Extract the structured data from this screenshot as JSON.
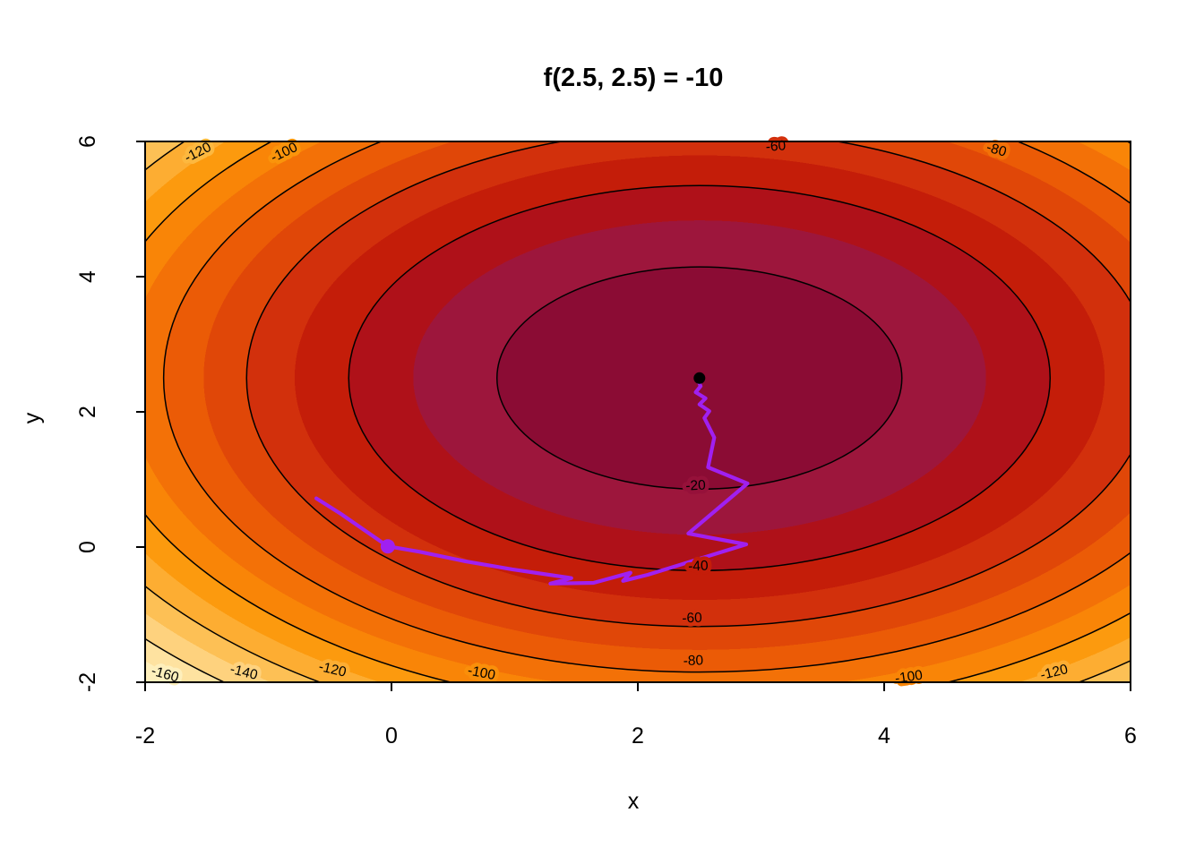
{
  "title": "f(2.5, 2.5) = -10",
  "background": "#FFFFFF",
  "chart_data": {
    "type": "filled-contour",
    "title": "f(2.5, 2.5) = -10",
    "xlabel": "x",
    "ylabel": "y",
    "xlim": [
      -2,
      6
    ],
    "ylim": [
      -2,
      6
    ],
    "grid": false,
    "x_ticks": [
      -2,
      0,
      2,
      4,
      6
    ],
    "y_ticks": [
      -2,
      0,
      2,
      4,
      6
    ],
    "x_tick_labels": [
      "-2",
      "0",
      "2",
      "4",
      "6"
    ],
    "y_tick_labels": [
      "-2",
      "0",
      "2",
      "4",
      "6"
    ],
    "optimum": {
      "x": 2.5,
      "y": 2.5,
      "f": -10
    },
    "optimum_point_color": "#000000",
    "function_model": {
      "center_value": -10,
      "radial_coefficient": 3.7
    },
    "fill_level_boundaries": [
      -20,
      -30,
      -40,
      -50,
      -60,
      -70,
      -80,
      -90,
      -100,
      -110,
      -120,
      -130,
      -140,
      -150,
      -160,
      -170
    ],
    "fill_colors": [
      "#8B0C34",
      "#9D163C",
      "#AF1119",
      "#C41D09",
      "#D2300C",
      "#E04708",
      "#EB5B06",
      "#F37107",
      "#F98507",
      "#FC9A0E",
      "#FDAD32",
      "#FDC055",
      "#FED27E",
      "#FEE2A0",
      "#FEEFBC",
      "#FFF8D4",
      "#FFFDE5"
    ],
    "contour_line_levels": [
      -20,
      -40,
      -60,
      -80,
      -100,
      -120,
      -140,
      -160
    ],
    "contour_labels": [
      {
        "text": "-20",
        "x": 2.47,
        "y": 0.9,
        "rot": -3,
        "bg": "#96113A"
      },
      {
        "text": "-40",
        "x": 2.49,
        "y": -0.29,
        "rot": -2,
        "bg": "#C41D09"
      },
      {
        "text": "-60",
        "x": 2.44,
        "y": -1.06,
        "rot": -2,
        "bg": "#D2300C"
      },
      {
        "text": "-80",
        "x": 2.45,
        "y": -1.69,
        "rot": -2,
        "bg": "#EB5B06"
      },
      {
        "text": "-100",
        "x": 0.73,
        "y": -1.87,
        "rot": 11,
        "bg": "#FA8F0A"
      },
      {
        "text": "-120",
        "x": -0.48,
        "y": -1.82,
        "rot": 13,
        "bg": "#FDAD32"
      },
      {
        "text": "-140",
        "x": -1.2,
        "y": -1.86,
        "rot": 14,
        "bg": "#FED27E"
      },
      {
        "text": "-160",
        "x": -1.84,
        "y": -1.89,
        "rot": 16,
        "bg": "#FEEFBC"
      },
      {
        "text": "-100",
        "x": 4.2,
        "y": -1.93,
        "rot": -8,
        "bg": "#F98507"
      },
      {
        "text": "-120",
        "x": 5.38,
        "y": -1.86,
        "rot": -14,
        "bg": "#FDAD32"
      },
      {
        "text": "-60",
        "x": 3.12,
        "y": 5.92,
        "rot": -4,
        "bg": "#D2300C"
      },
      {
        "text": "-80",
        "x": 4.91,
        "y": 5.87,
        "rot": 16,
        "bg": "#F37107"
      },
      {
        "text": "-100",
        "x": -0.87,
        "y": 5.83,
        "rot": -26,
        "bg": "#FA940B"
      },
      {
        "text": "-120",
        "x": -1.57,
        "y": 5.83,
        "rot": -27,
        "bg": "#FDB83F"
      }
    ],
    "path": {
      "color": "#A020F0",
      "width": 4.2,
      "start_marker": {
        "x": -0.03,
        "y": 0.01,
        "radius": 8
      },
      "points": [
        [
          -0.61,
          0.72
        ],
        [
          -0.41,
          0.49
        ],
        [
          -0.03,
          0.01
        ],
        [
          0.23,
          -0.07
        ],
        [
          0.6,
          -0.21
        ],
        [
          0.98,
          -0.33
        ],
        [
          1.46,
          -0.46
        ],
        [
          1.29,
          -0.54
        ],
        [
          1.64,
          -0.53
        ],
        [
          1.94,
          -0.38
        ],
        [
          1.88,
          -0.5
        ],
        [
          2.08,
          -0.41
        ],
        [
          2.88,
          0.04
        ],
        [
          2.41,
          0.2
        ],
        [
          2.89,
          0.94
        ],
        [
          2.57,
          1.18
        ],
        [
          2.62,
          1.62
        ],
        [
          2.54,
          1.91
        ],
        [
          2.58,
          2.01
        ],
        [
          2.5,
          2.11
        ],
        [
          2.55,
          2.2
        ],
        [
          2.47,
          2.29
        ],
        [
          2.51,
          2.38
        ],
        [
          2.49,
          2.46
        ]
      ]
    }
  }
}
